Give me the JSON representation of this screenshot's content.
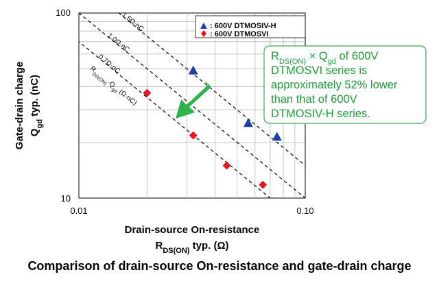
{
  "chart_data": {
    "type": "scatter",
    "title": "Comparison of drain-source On-resistance and gate-drain charge",
    "xlabel_line1": "Drain-source On-resistance",
    "xlabel_line2_main": "R",
    "xlabel_line2_sub": "DS(ON)",
    "xlabel_line2_rest": " typ.  (Ω)",
    "ylabel_line1": "Gate-drain charge",
    "ylabel_line2_main": "Q",
    "ylabel_line2_sub": "gd",
    "ylabel_line2_rest": " typ.  (nC)",
    "x_scale": "log",
    "y_scale": "log",
    "xlim": [
      0.01,
      0.1
    ],
    "ylim": [
      10,
      100
    ],
    "x_ticks": [
      "0.01",
      "0.10"
    ],
    "y_ticks": [
      "10",
      "100"
    ],
    "grid": true,
    "legend_position": "top-right",
    "series": [
      {
        "name": ": 600V DTMOSIV-H",
        "marker": "triangle",
        "color": "#1f3fa8",
        "points": [
          {
            "x": 0.032,
            "y": 49
          },
          {
            "x": 0.056,
            "y": 25.5
          },
          {
            "x": 0.075,
            "y": 21.5
          }
        ]
      },
      {
        "name": ": 600V DTMOSVI",
        "marker": "diamond",
        "color": "#e8161e",
        "points": [
          {
            "x": 0.02,
            "y": 37
          },
          {
            "x": 0.032,
            "y": 21.8
          },
          {
            "x": 0.045,
            "y": 15
          },
          {
            "x": 0.065,
            "y": 11.8
          }
        ]
      }
    ],
    "reference_lines": [
      {
        "product": 1.5,
        "label": "1.5Ω·nC"
      },
      {
        "product": 1.0,
        "label": "1.0Ω·nC"
      },
      {
        "product": 0.7,
        "label": "0.7Ω·nC"
      }
    ],
    "reference_line_caption": "RDS(ON)·Qgd (Ω·nC)",
    "ref_caption_parts": {
      "r": "R",
      "rsub": "DS(ON)",
      "mid": "·Q",
      "qsub": "gd",
      "rest": " (Ω·nC)"
    },
    "annotation": {
      "line1_main": "R",
      "line1_sub": "DS(ON)",
      "line1_mid": " × Q",
      "line1_sub2": "gd",
      "line1_rest": " of 600V",
      "line2": "DTMOSVI series is",
      "line3": "approximately 52% lower",
      "line4": "than that of 600V",
      "line5": "DTMOSIV-H series.",
      "color": "#1f9a3a"
    }
  }
}
